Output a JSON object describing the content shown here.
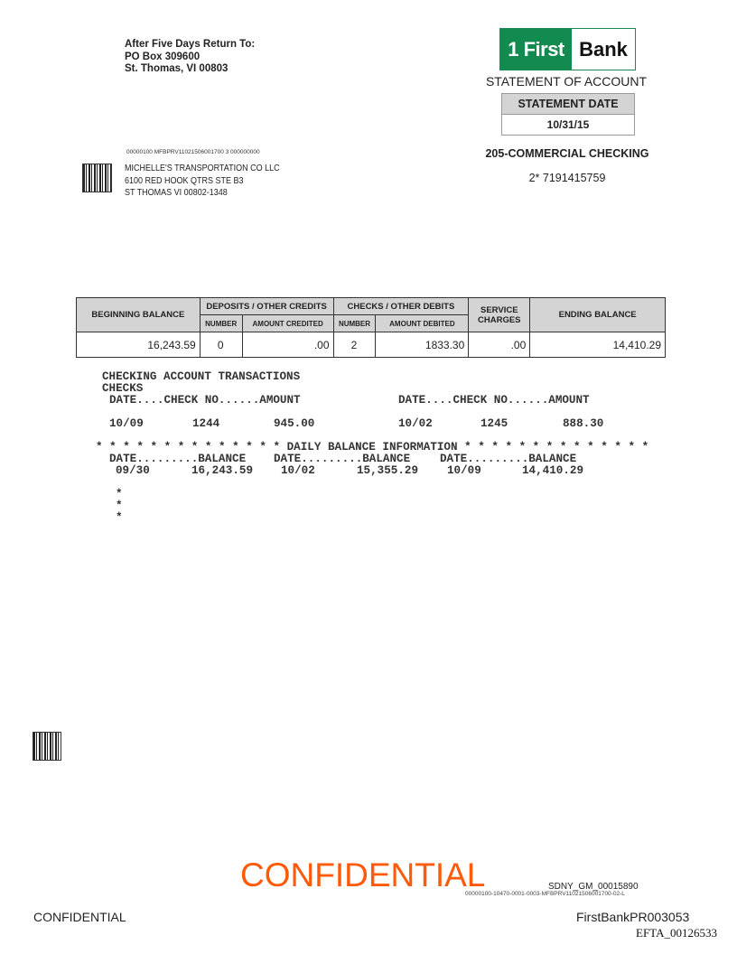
{
  "return_address": {
    "line1": "After Five Days Return To:",
    "line2": "PO Box 309600",
    "line3": "St. Thomas, VI  00803"
  },
  "logo": {
    "left": "1 First",
    "right": "Bank",
    "brand_color": "#138a4f"
  },
  "statement_title": "STATEMENT OF ACCOUNT",
  "statement_date": {
    "label": "STATEMENT DATE",
    "value": "10/31/15"
  },
  "account": {
    "type": "205-COMMERCIAL CHECKING",
    "number": "2*  7191415759"
  },
  "mailing": {
    "code": "00000100  MFBPRV11021506001700  3  000000000",
    "name": "MICHELLE'S TRANSPORTATION CO LLC",
    "street": "6100 RED HOOK QTRS STE B3",
    "city": "ST THOMAS VI  00802-1348"
  },
  "summary": {
    "headers": {
      "beginning": "BEGINNING BALANCE",
      "deposits": "DEPOSITS / OTHER CREDITS",
      "checks": "CHECKS / OTHER DEBITS",
      "service": "SERVICE CHARGES",
      "ending": "ENDING BALANCE",
      "number": "NUMBER",
      "amount_credited": "AMOUNT  CREDITED",
      "amount_debited": "AMOUNT DEBITED"
    },
    "values": {
      "beginning": "16,243.59",
      "deposits_number": "0",
      "amount_credited": ".00",
      "checks_number": "2",
      "amount_debited": "1833.30",
      "service": ".00",
      "ending": "14,410.29"
    }
  },
  "transactions": {
    "title": "CHECKING ACCOUNT TRANSACTIONS",
    "section": "CHECKS",
    "col_header": "DATE....CHECK NO......AMOUNT",
    "checks": [
      {
        "date": "10/09",
        "number": "1244",
        "amount": "945.00"
      },
      {
        "date": "10/02",
        "number": "1245",
        "amount": "888.30"
      }
    ]
  },
  "daily_balance": {
    "banner": "* * * * * * * * * * * * * * DAILY BALANCE INFORMATION * * * * * * * * * * * * * *",
    "col_header": "DATE.........BALANCE",
    "entries": [
      {
        "date": "09/30",
        "balance": "16,243.59"
      },
      {
        "date": "10/02",
        "balance": "15,355.29"
      },
      {
        "date": "10/09",
        "balance": "14,410.29"
      }
    ]
  },
  "trailing_stars": [
    "*",
    "*",
    "*"
  ],
  "footer": {
    "confidential_stamp": "CONFIDENTIAL",
    "stamp_color": "#ff5a0a",
    "bates": "SDNY_GM_00015890",
    "doc_code": "00000100-10470-0001-0003-MFBPRV11021506001700-02-L",
    "confidential": "CONFIDENTIAL",
    "production_id": "FirstBankPR003053",
    "efta": "EFTA_00126533"
  }
}
